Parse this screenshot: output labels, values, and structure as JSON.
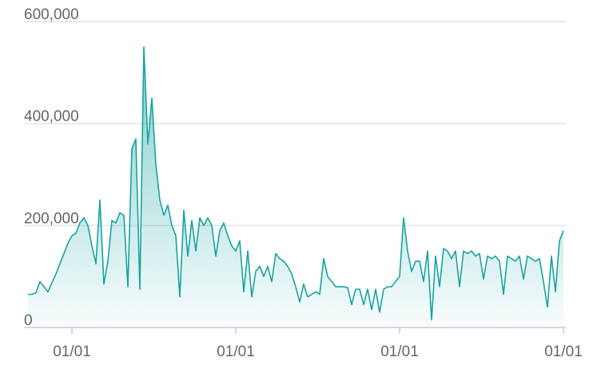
{
  "chart_data": {
    "type": "area",
    "color": "#17a5a0",
    "grid": true,
    "ylim": [
      0,
      600000
    ],
    "yticks": [
      0,
      {
        "value": 200000,
        "label": "200,000"
      },
      {
        "value": 400000,
        "label": "400,000"
      },
      {
        "value": 600000,
        "label": "600,000"
      }
    ],
    "categories": [
      null,
      null,
      null,
      null,
      null,
      null,
      null,
      null,
      null,
      null,
      null,
      "01/01",
      null,
      null,
      null,
      null,
      null,
      null,
      null,
      null,
      null,
      null,
      null,
      null,
      null,
      null,
      null,
      null,
      null,
      null,
      null,
      null,
      null,
      null,
      null,
      null,
      null,
      null,
      null,
      null,
      null,
      null,
      null,
      null,
      null,
      null,
      null,
      null,
      null,
      null,
      null,
      null,
      "01/01",
      null,
      null,
      null,
      null,
      null,
      null,
      null,
      null,
      null,
      null,
      null,
      null,
      null,
      null,
      null,
      null,
      null,
      null,
      null,
      null,
      null,
      null,
      null,
      null,
      null,
      null,
      null,
      null,
      null,
      null,
      null,
      null,
      null,
      null,
      null,
      null,
      null,
      null,
      null,
      null,
      "01/01",
      null,
      null,
      null,
      null,
      null,
      null,
      null,
      null,
      null,
      null,
      null,
      null,
      null,
      null,
      null,
      null,
      null,
      null,
      null,
      null,
      null,
      null,
      null,
      null,
      null,
      null,
      null,
      null,
      null,
      null,
      null,
      null,
      null,
      null,
      null,
      null,
      null,
      null,
      null,
      null,
      "01/01"
    ],
    "values": [
      65000,
      65000,
      68000,
      90000,
      80000,
      70000,
      88000,
      105000,
      125000,
      145000,
      165000,
      180000,
      185000,
      205000,
      215000,
      200000,
      160000,
      125000,
      250000,
      85000,
      130000,
      210000,
      205000,
      225000,
      220000,
      80000,
      350000,
      370000,
      75000,
      550000,
      360000,
      450000,
      320000,
      250000,
      220000,
      240000,
      200000,
      180000,
      60000,
      230000,
      140000,
      210000,
      150000,
      215000,
      200000,
      215000,
      200000,
      140000,
      190000,
      205000,
      180000,
      160000,
      150000,
      170000,
      70000,
      150000,
      60000,
      110000,
      120000,
      100000,
      120000,
      90000,
      145000,
      135000,
      130000,
      120000,
      105000,
      80000,
      50000,
      85000,
      60000,
      65000,
      70000,
      65000,
      135000,
      100000,
      90000,
      80000,
      80000,
      80000,
      78000,
      45000,
      75000,
      75000,
      45000,
      75000,
      35000,
      75000,
      30000,
      75000,
      80000,
      80000,
      90000,
      100000,
      215000,
      150000,
      110000,
      130000,
      130000,
      90000,
      150000,
      15000,
      140000,
      80000,
      155000,
      150000,
      135000,
      150000,
      80000,
      150000,
      145000,
      150000,
      140000,
      145000,
      95000,
      140000,
      135000,
      140000,
      130000,
      65000,
      140000,
      135000,
      130000,
      140000,
      95000,
      140000,
      135000,
      130000,
      135000,
      90000,
      40000,
      140000,
      70000,
      170000,
      190000
    ]
  }
}
